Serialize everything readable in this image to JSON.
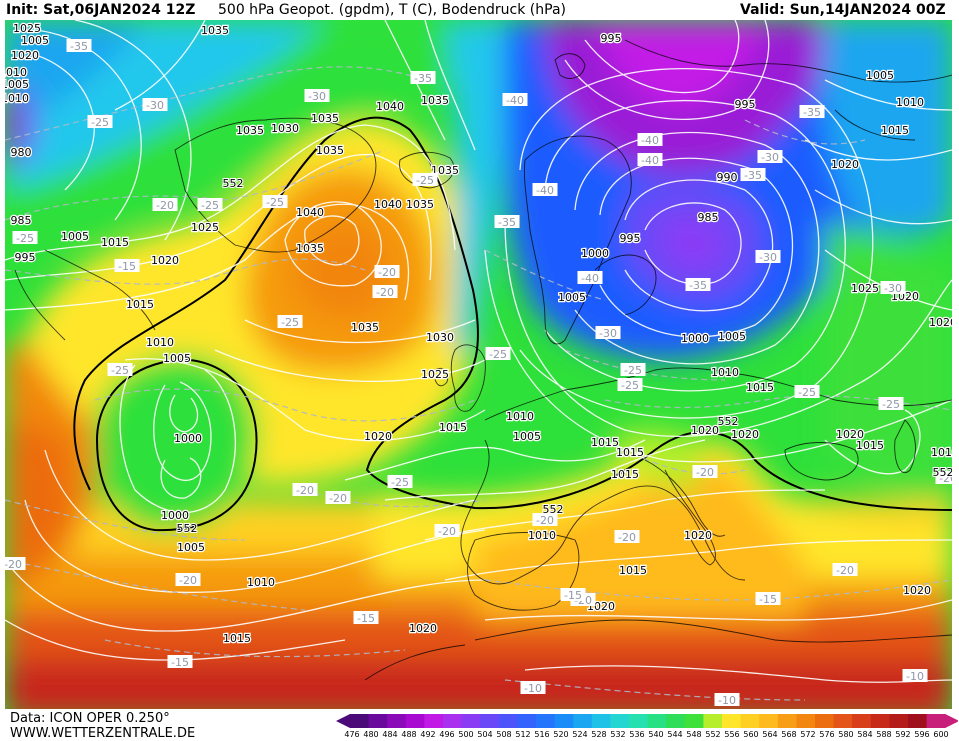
{
  "header": {
    "init": "Init: Sat,06JAN2024 12Z",
    "title": "500 hPa Geopot. (gpdm), T (C), Bodendruck (hPa)",
    "valid": "Valid: Sun,14JAN2024 00Z"
  },
  "footer": {
    "source": "Data: ICON OPER 0.250°",
    "url": "WWW.WETTERZENTRALE.DE"
  },
  "colors": {
    "deep_low": "#9a1fd6",
    "blue": "#1e5cff",
    "cyan": "#22c8ec",
    "green": "#2ee03a",
    "yellow": "#ffe62a",
    "orange": "#f59a10",
    "red": "#e2431e",
    "darkred": "#c0281a"
  },
  "scale": {
    "labels": [
      "476",
      "480",
      "484",
      "488",
      "492",
      "496",
      "500",
      "504",
      "508",
      "512",
      "516",
      "520",
      "524",
      "528",
      "532",
      "536",
      "540",
      "544",
      "548",
      "552",
      "556",
      "560",
      "564",
      "568",
      "572",
      "576",
      "580",
      "584",
      "588",
      "592",
      "596",
      "600"
    ],
    "colors": [
      "#4a0a78",
      "#6a0a9c",
      "#8a0ab8",
      "#a80ad2",
      "#c21ae6",
      "#aa30f0",
      "#8a3cf4",
      "#6a48f8",
      "#4c54fa",
      "#3462fc",
      "#2474fc",
      "#1a8cf8",
      "#1aa6f0",
      "#1ec2e6",
      "#24d6d2",
      "#26e0b0",
      "#28e084",
      "#2ede58",
      "#3ee03a",
      "#b6ee2c",
      "#ffe62a",
      "#ffd024",
      "#ffba1e",
      "#f89e14",
      "#f2860e",
      "#ec6c10",
      "#e45418",
      "#d83e1a",
      "#c82a1a",
      "#b41c1a",
      "#a0101c",
      "#c8207a"
    ]
  },
  "pressure_labels": [
    {
      "text": "1025"
    },
    {
      "text": "1035"
    },
    {
      "text": "1035"
    },
    {
      "text": "1040"
    },
    {
      "text": "1035"
    },
    {
      "text": "1035"
    },
    {
      "text": "1030"
    },
    {
      "text": "1035"
    },
    {
      "text": "1040"
    },
    {
      "text": "1040"
    },
    {
      "text": "1035"
    },
    {
      "text": "1035"
    },
    {
      "text": "1035"
    },
    {
      "text": "1035"
    },
    {
      "text": "1030"
    },
    {
      "text": "1025"
    },
    {
      "text": "1025"
    },
    {
      "text": "1020"
    },
    {
      "text": "1015"
    },
    {
      "text": "1015"
    },
    {
      "text": "1010"
    },
    {
      "text": "1005"
    },
    {
      "text": "1000"
    },
    {
      "text": "1000"
    },
    {
      "text": "1005"
    },
    {
      "text": "1010"
    },
    {
      "text": "1015"
    },
    {
      "text": "1020"
    },
    {
      "text": "1020"
    },
    {
      "text": "1015"
    },
    {
      "text": "1010"
    },
    {
      "text": "1005"
    },
    {
      "text": "1010"
    },
    {
      "text": "1015"
    },
    {
      "text": "1020"
    },
    {
      "text": "1015"
    },
    {
      "text": "1020"
    },
    {
      "text": "1020"
    },
    {
      "text": "995"
    },
    {
      "text": "995"
    },
    {
      "text": "990"
    },
    {
      "text": "985"
    },
    {
      "text": "995"
    },
    {
      "text": "1000"
    },
    {
      "text": "1005"
    },
    {
      "text": "1000"
    },
    {
      "text": "1005"
    },
    {
      "text": "1010"
    },
    {
      "text": "1015"
    },
    {
      "text": "1020"
    },
    {
      "text": "1005"
    },
    {
      "text": "1010"
    },
    {
      "text": "1015"
    },
    {
      "text": "1020"
    },
    {
      "text": "1025"
    },
    {
      "text": "1020"
    },
    {
      "text": "1020"
    },
    {
      "text": "1015"
    },
    {
      "text": "1010"
    },
    {
      "text": "1020"
    },
    {
      "text": "1020"
    },
    {
      "text": "985"
    },
    {
      "text": "980"
    },
    {
      "text": "1005"
    },
    {
      "text": "995"
    },
    {
      "text": "1005"
    },
    {
      "text": "1020"
    },
    {
      "text": "1015"
    },
    {
      "text": "1015"
    },
    {
      "text": "1010"
    },
    {
      "text": "1005"
    },
    {
      "text": "1010"
    }
  ],
  "temperature_labels": [
    {
      "text": "-35"
    },
    {
      "text": "-30"
    },
    {
      "text": "-25"
    },
    {
      "text": "-30"
    },
    {
      "text": "-35"
    },
    {
      "text": "-40"
    },
    {
      "text": "-20"
    },
    {
      "text": "-25"
    },
    {
      "text": "-25"
    },
    {
      "text": "-15"
    },
    {
      "text": "-20"
    },
    {
      "text": "-25"
    },
    {
      "text": "-20"
    },
    {
      "text": "-25"
    },
    {
      "text": "-35"
    },
    {
      "text": "-40"
    },
    {
      "text": "-40"
    },
    {
      "text": "-40"
    },
    {
      "text": "-35"
    },
    {
      "text": "-35"
    },
    {
      "text": "-30"
    },
    {
      "text": "-35"
    },
    {
      "text": "-40"
    },
    {
      "text": "-30"
    },
    {
      "text": "-25"
    },
    {
      "text": "-25"
    },
    {
      "text": "-25"
    },
    {
      "text": "-25"
    },
    {
      "text": "-20"
    },
    {
      "text": "-20"
    },
    {
      "text": "-20"
    },
    {
      "text": "-25"
    },
    {
      "text": "-20"
    },
    {
      "text": "-20"
    },
    {
      "text": "-20"
    },
    {
      "text": "-20"
    },
    {
      "text": "-20"
    },
    {
      "text": "-15"
    },
    {
      "text": "-15"
    },
    {
      "text": "-15"
    },
    {
      "text": "-10"
    },
    {
      "text": "-10"
    },
    {
      "text": "-10"
    },
    {
      "text": "-20"
    },
    {
      "text": "-25"
    },
    {
      "text": "-30"
    },
    {
      "text": "-35"
    },
    {
      "text": "-30"
    },
    {
      "text": "-25"
    },
    {
      "text": "-20"
    },
    {
      "text": "-15"
    },
    {
      "text": "-25"
    },
    {
      "text": "-20"
    },
    {
      "text": "-20"
    }
  ],
  "contour_labels": [
    {
      "text": "552"
    },
    {
      "text": "552"
    },
    {
      "text": "552"
    },
    {
      "text": "552"
    },
    {
      "text": "552"
    }
  ]
}
